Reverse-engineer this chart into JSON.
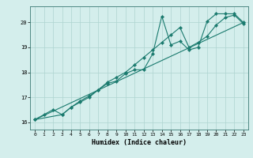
{
  "xlabel": "Humidex (Indice chaleur)",
  "bg_color": "#d4eeec",
  "grid_color": "#aed4d0",
  "line_color": "#1a7a6e",
  "xlim": [
    -0.5,
    23.5
  ],
  "ylim": [
    15.7,
    20.65
  ],
  "yticks": [
    16,
    17,
    18,
    19,
    20
  ],
  "xticks": [
    0,
    1,
    2,
    3,
    4,
    5,
    6,
    7,
    8,
    9,
    10,
    11,
    12,
    13,
    14,
    15,
    16,
    17,
    18,
    19,
    20,
    21,
    22,
    23
  ],
  "line1_x": [
    0,
    1,
    2,
    3,
    4,
    5,
    6,
    7,
    8,
    9,
    10,
    11,
    12,
    13,
    14,
    15,
    16,
    17,
    18,
    19,
    20,
    21,
    22,
    23
  ],
  "line1_y": [
    16.1,
    16.3,
    16.5,
    16.3,
    16.6,
    16.8,
    17.0,
    17.3,
    17.55,
    17.65,
    17.95,
    18.1,
    18.1,
    18.75,
    20.25,
    19.1,
    19.25,
    18.9,
    19.0,
    20.05,
    20.35,
    20.35,
    20.35,
    20.0
  ],
  "line2_x": [
    0,
    3,
    4,
    5,
    6,
    7,
    8,
    9,
    10,
    11,
    12,
    13,
    14,
    15,
    16,
    17,
    18,
    19,
    20,
    21,
    22,
    23
  ],
  "line2_y": [
    16.1,
    16.3,
    16.6,
    16.85,
    17.05,
    17.3,
    17.6,
    17.8,
    18.0,
    18.3,
    18.6,
    18.9,
    19.2,
    19.5,
    19.8,
    19.0,
    19.2,
    19.45,
    19.9,
    20.2,
    20.3,
    19.95
  ],
  "line3_x": [
    0,
    23
  ],
  "line3_y": [
    16.1,
    20.0
  ]
}
